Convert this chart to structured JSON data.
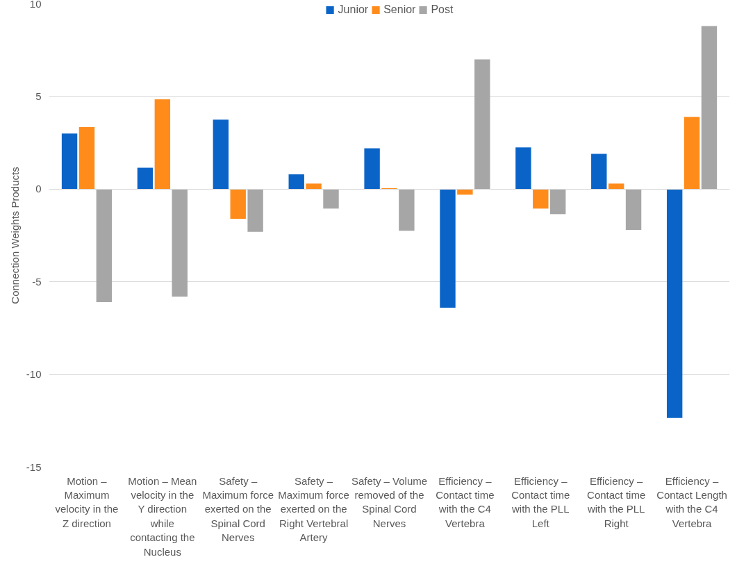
{
  "chart_data": {
    "type": "bar",
    "ylabel": "Connection Weights Products",
    "categories": [
      "Motion – Maximum velocity in the Z direction",
      "Motion – Mean velocity in the Y direction while contacting the Nucleus",
      "Safety – Maximum force exerted on the Spinal Cord Nerves",
      "Safety – Maximum force exerted on the Right Vertebral Artery",
      "Safety – Volume removed of the Spinal Cord Nerves",
      "Efficiency – Contact time with the C4 Vertebra",
      "Efficiency – Contact time with the PLL Left",
      "Efficiency – Contact time with the PLL Right",
      "Efficiency – Contact Length with the C4 Vertebra"
    ],
    "series": [
      {
        "name": "Junior",
        "color": "#0a64c8",
        "values": [
          3.0,
          1.15,
          3.75,
          0.8,
          2.2,
          -6.4,
          2.25,
          1.9,
          -12.35
        ]
      },
      {
        "name": "Senior",
        "color": "#ff8c1a",
        "values": [
          3.35,
          4.85,
          -1.6,
          0.3,
          0.05,
          -0.3,
          -1.05,
          0.3,
          3.9
        ]
      },
      {
        "name": "Post",
        "color": "#a6a6a6",
        "values": [
          -6.1,
          -5.8,
          -2.3,
          -1.05,
          -2.25,
          7.0,
          -1.35,
          -2.2,
          8.8
        ]
      }
    ],
    "ylim": [
      -15,
      10
    ],
    "yticks": [
      -15,
      -10,
      -5,
      0,
      5,
      10
    ],
    "grid": "y",
    "legend": "top"
  }
}
